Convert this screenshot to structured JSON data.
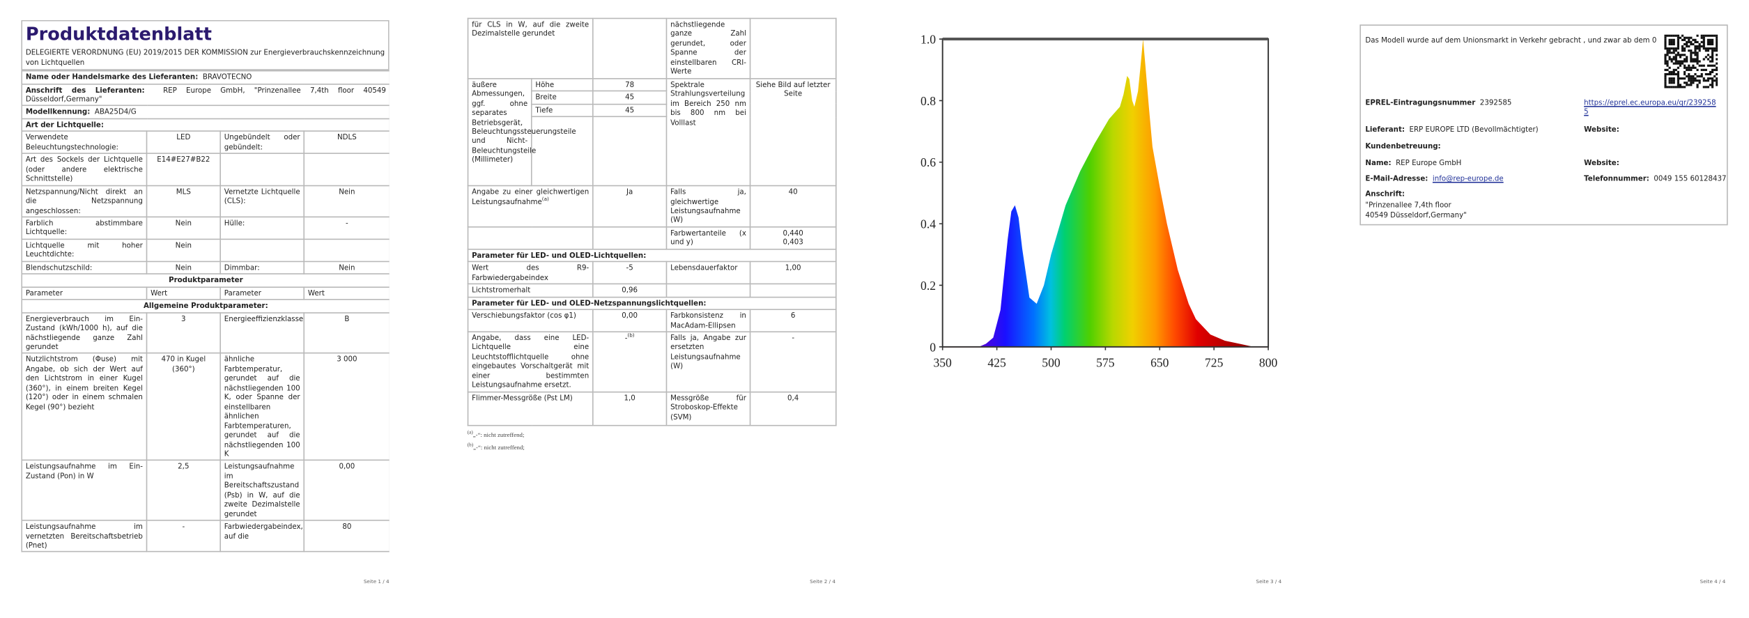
{
  "page1": {
    "title": "Produktdatenblatt",
    "subtitle": "DELEGIERTE VERORDNUNG (EU) 2019/2015 DER KOMMISSION zur Energieverbrauchskennzeichnung von Lichtquellen",
    "info": [
      {
        "label": "Name oder Handelsmarke des Lieferanten:",
        "value": "BRAVOTECNO"
      },
      {
        "label": "Anschrift des Lieferanten:",
        "value": "REP Europe GmbH, \"Prinzenallee 7,4th floor 40549 Düsseldorf,Germany\""
      },
      {
        "label": "Modellkennung:",
        "value": "ABA25D4/G"
      }
    ],
    "light_type_heading": "Art der Lichtquelle:",
    "light_type_rows": [
      [
        "Verwendete Beleuchtungstechnologie:",
        "LED",
        "Ungebündelt oder gebündelt:",
        "NDLS"
      ],
      [
        "Art des Sockels der Lichtquelle (oder andere elektrische Schnittstelle)",
        "E14#E27#B22"
      ],
      [
        "Netzspannung/Nicht direkt an die Netzspannung angeschlossen:",
        "MLS",
        "Vernetzte Lichtquelle (CLS):",
        "Nein"
      ],
      [
        "Farblich abstimmbare Lichtquelle:",
        "Nein",
        "Hülle:",
        "-"
      ],
      [
        "Lichtquelle mit hoher Leuchtdichte:",
        "Nein"
      ],
      [
        "Blendschutzschild:",
        "Nein",
        "Dimmbar:",
        "Nein"
      ]
    ],
    "params_heading": "Produktparameter",
    "columns": [
      "Parameter",
      "Wert",
      "Parameter",
      "Wert"
    ],
    "general_heading": "Allgemeine Produktparameter:",
    "general_rows": [
      [
        "Energieverbrauch im Ein-Zustand (kWh/1000 h), auf die nächstliegende ganze Zahl gerundet",
        "3",
        "Energieeffizienzklasse",
        "B"
      ],
      [
        "Nutzlichtstrom (Φuse) mit Angabe, ob sich der Wert auf den Lichtstrom in einer Kugel (360°), in einem breiten Kegel (120°) oder in einem schmalen Kegel (90°) bezieht",
        "470 in Kugel (360°)",
        "ähnliche Farbtemperatur, gerundet auf die nächstliegenden 100 K, oder Spanne der einstellbaren ähnlichen Farbtemperaturen, gerundet auf die nächstliegenden 100 K",
        "3 000"
      ],
      [
        "Leistungsaufnahme im Ein-Zustand (Pon) in W",
        "2,5",
        "Leistungsaufnahme im Bereitschaftszustand (Psb) in W, auf die zweite Dezimalstelle gerundet",
        "0,00"
      ],
      [
        "Leistungsaufnahme im vernetzten Bereitschaftsbetrieb (Pnet)",
        "-",
        "Farbwiedergabeindex, auf die",
        "80"
      ]
    ],
    "page_label": "Seite 1 / 4"
  },
  "page2": {
    "top_row": [
      "für CLS in W, auf die zweite Dezimalstelle gerundet",
      "nächstliegende ganze Zahl gerundet, oder Spanne der einstellbaren CRI-Werte"
    ],
    "dimensions": {
      "label": "äußere Abmessungen, ggf. ohne separates Betriebsgerät, Beleuchtungssteuerungsteile und Nicht-Beleuchtungsteile (Millimeter)",
      "items": [
        [
          "Höhe",
          "78"
        ],
        [
          "Breite",
          "45"
        ],
        [
          "Tiefe",
          "45"
        ]
      ],
      "param": "Spektrale Strahlungsverteilung im Bereich 250 nm bis 800 nm bei Volllast",
      "value": "Siehe Bild auf letzter Seite"
    },
    "equivalent": {
      "label": "Angabe zu einer gleichwertigen Leistungsaufnahme",
      "note": "(a)",
      "value": "Ja",
      "param": "Falls ja, gleichwertige Leistungsaufnahme (W)",
      "param_value": "40"
    },
    "chromaticity": {
      "label": "Farbwertanteile (x und y)",
      "x": "0,440",
      "y": "0,403"
    },
    "led_heading": "Parameter für LED- und OLED-Lichtquellen:",
    "led_rows": [
      [
        "Wert des R9-Farbwiedergabeindex",
        "-5",
        "Lebensdauerfaktor",
        "1,00"
      ],
      [
        "Lichtstromerhalt",
        "0,96"
      ]
    ],
    "mains_heading": "Parameter für LED- und OLED-Netzspannungslichtquellen:",
    "mains_row": [
      "Verschiebungsfaktor (cos φ1)",
      "0,00",
      "Farbkonsistenz in MacAdam-Ellipsen",
      "6"
    ],
    "replace": {
      "label": "Angabe, dass eine LED-Lichtquelle eine Leuchtstofflichtquelle ohne eingebautes Vorschaltgerät mit einer bestimmten Leistungsaufnahme ersetzt.",
      "value": "-",
      "note": "(b)",
      "param": "Falls ja, Angabe zur ersetzten Leistungsaufnahme (W)",
      "param_value": "-"
    },
    "flicker_row": [
      "Flimmer-Messgröße (Pst LM)",
      "1,0",
      "Messgröße für Stroboskop-Effekte (SVM)",
      "0,4"
    ],
    "footnotes": [
      {
        "mark": "(a)",
        "text": "„-“: nicht zutreffend;"
      },
      {
        "mark": "(b)",
        "text": "„-“: nicht zutreffend;"
      }
    ],
    "page_label": "Seite 2 / 4"
  },
  "page3": {
    "spectrum": {
      "x": [
        400,
        410,
        420,
        430,
        440,
        445,
        450,
        455,
        460,
        470,
        480,
        490,
        500,
        520,
        540,
        560,
        580,
        595,
        600,
        605,
        608,
        612,
        615,
        620,
        623,
        627,
        630,
        635,
        640,
        650,
        660,
        675,
        690,
        700,
        720,
        740,
        760,
        780
      ],
      "values": [
        0,
        0.01,
        0.03,
        0.12,
        0.35,
        0.44,
        0.46,
        0.42,
        0.32,
        0.16,
        0.14,
        0.2,
        0.3,
        0.46,
        0.57,
        0.66,
        0.74,
        0.78,
        0.82,
        0.88,
        0.87,
        0.8,
        0.78,
        0.83,
        0.9,
        1.0,
        0.92,
        0.78,
        0.65,
        0.52,
        0.4,
        0.25,
        0.14,
        0.09,
        0.04,
        0.02,
        0.01,
        0
      ],
      "xlim": [
        350,
        800
      ],
      "ylim": [
        0,
        1
      ],
      "xticks": [
        350,
        425,
        500,
        575,
        650,
        725,
        800
      ],
      "yticks": [
        0,
        0.2,
        0.4,
        0.6,
        0.8,
        {
          "value": 1,
          "label": "1.0"
        }
      ]
    },
    "page_label": "Seite 3 / 4"
  },
  "page4": {
    "intro": "Das Modell wurde auf dem Unionsmarkt in Verkehr gebracht , und zwar ab dem 0",
    "eprel_label": "EPREL-Eintragungsnummer",
    "eprel_number": "2392585",
    "eprel_link": "https://eprel.ec.europa.eu/qr/2392585",
    "supplier_label": "Lieferant:",
    "supplier_value": "ERP EUROPE LTD (Bevollmächtigter)",
    "website_label": "Website:",
    "customer_service_label": "Kundenbetreuung:",
    "name_label": "Name:",
    "name_value": "REP Europe GmbH",
    "website2_label": "Website:",
    "email_label": "E-Mail-Adresse:",
    "email_value": "info@rep-europe.de",
    "phone_label": "Telefonnummer:",
    "phone_value": "0049 155 60128437",
    "address_label": "Anschrift:",
    "address_lines": [
      "\"Prinzenallee 7,4th floor",
      "40549 Düsseldorf,Germany\""
    ],
    "page_label": "Seite 4 / 4"
  }
}
